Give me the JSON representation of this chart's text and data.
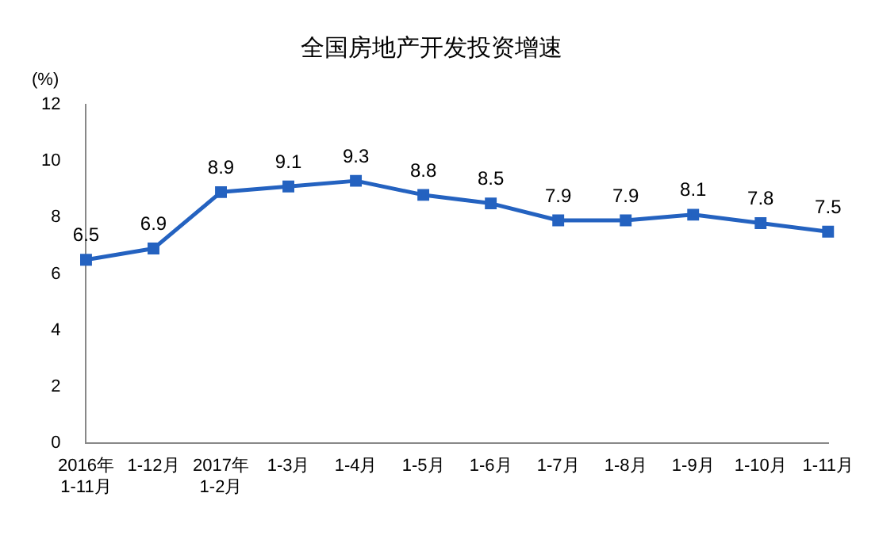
{
  "chart_data": {
    "type": "line",
    "title": "全国房地产开发投资增速",
    "ylabel": "(%)",
    "categories": [
      "2016年\n1-11月",
      "1-12月",
      "2017年\n1-2月",
      "1-3月",
      "1-4月",
      "1-5月",
      "1-6月",
      "1-7月",
      "1-8月",
      "1-9月",
      "1-10月",
      "1-11月"
    ],
    "series": [
      {
        "color": "#2462c0",
        "values": [
          6.5,
          6.9,
          8.9,
          9.1,
          9.3,
          8.8,
          8.5,
          7.9,
          7.9,
          8.1,
          7.8,
          7.5
        ]
      }
    ],
    "ylim": [
      0,
      12
    ],
    "yticks": [
      0,
      2,
      4,
      6,
      8,
      10,
      12
    ],
    "grid": false,
    "legend": false,
    "marker": "square",
    "line_style": "solid",
    "data_labels": true
  }
}
